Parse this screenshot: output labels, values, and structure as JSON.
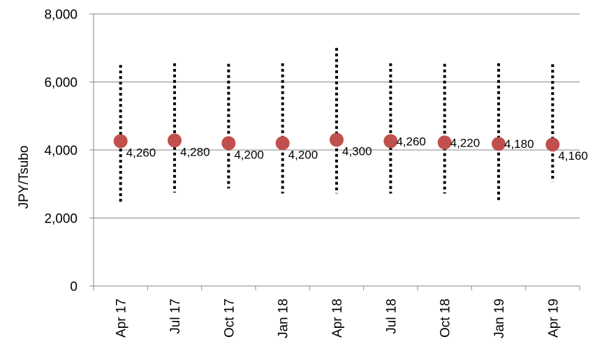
{
  "chart_data": {
    "type": "scatter",
    "title": "",
    "xlabel": "",
    "ylabel": "JPY/Tsubo",
    "ylim": [
      0,
      8000
    ],
    "y_ticks": [
      "0",
      "2,000",
      "4,000",
      "6,000",
      "8,000"
    ],
    "y_tick_values": [
      0,
      2000,
      4000,
      6000,
      8000
    ],
    "categories": [
      "Apr 17",
      "Jul 17",
      "Oct 17",
      "Jan 18",
      "Apr 18",
      "Jul 18",
      "Oct 18",
      "Jan 19",
      "Apr 19"
    ],
    "values": [
      4260,
      4280,
      4200,
      4200,
      4300,
      4260,
      4220,
      4180,
      4160
    ],
    "data_labels": [
      "4,260",
      "4,280",
      "4,200",
      "4,200",
      "4,300",
      "4,260",
      "4,220",
      "4,180",
      "4,160"
    ],
    "range_high": [
      6500,
      6550,
      6530,
      6550,
      7000,
      6550,
      6530,
      6550,
      6520
    ],
    "range_low": [
      2480,
      2750,
      2870,
      2720,
      2720,
      2720,
      2720,
      2500,
      3070
    ],
    "grid": true,
    "legend": "none",
    "colors": {
      "point": "#c0504d",
      "range_line": "#000000",
      "gridline": "#868686",
      "axis": "#868686"
    }
  }
}
